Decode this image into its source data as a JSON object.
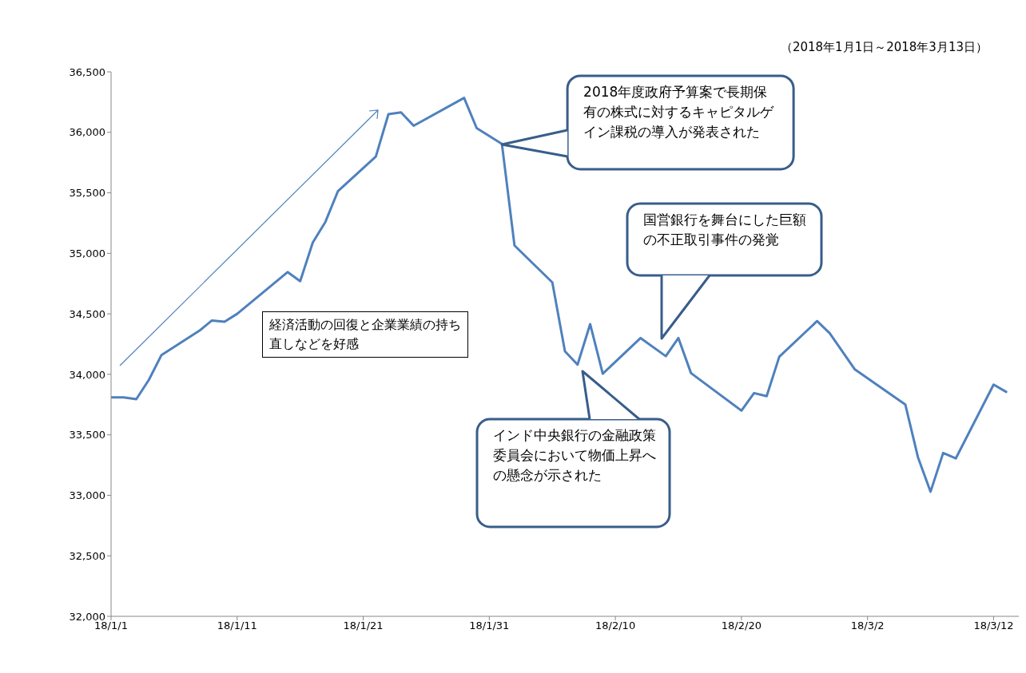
{
  "chart_data": {
    "type": "line",
    "subtitle": "（2018年1月1日～2018年3月13日）",
    "annotations": [
      "経済活動の回復と企業業績の持ち直しなどを好感",
      {
        "text": "2018年度政府予算案で長期保有の株式に対するキャピタルゲイン課税の導入が発表された",
        "x": "2018-02-01",
        "y": 35900
      },
      "国営銀行を舞台にした巨額の不正取引事件の発覚",
      "インド中央銀行の金融政策委員会において物価上昇への懸念が示された"
    ],
    "x": [
      "2018-01-01",
      "2018-01-02",
      "2018-01-03",
      "2018-01-04",
      "2018-01-05",
      "2018-01-08",
      "2018-01-09",
      "2018-01-10",
      "2018-01-11",
      "2018-01-15",
      "2018-01-16",
      "2018-01-17",
      "2018-01-18",
      "2018-01-19",
      "2018-01-22",
      "2018-01-23",
      "2018-01-24",
      "2018-01-25",
      "2018-01-29",
      "2018-01-30",
      "2018-02-01",
      "2018-02-02",
      "2018-02-05",
      "2018-02-06",
      "2018-02-07",
      "2018-02-08",
      "2018-02-09",
      "2018-02-12",
      "2018-02-14",
      "2018-02-15",
      "2018-02-16",
      "2018-02-20",
      "2018-02-21",
      "2018-02-22",
      "2018-02-23",
      "2018-02-26",
      "2018-02-27",
      "2018-03-01",
      "2018-03-05",
      "2018-03-06",
      "2018-03-07",
      "2018-03-08",
      "2018-03-09",
      "2018-03-12",
      "2018-03-13"
    ],
    "series": [
      {
        "color": "#4f81bd",
        "values": [
          33810,
          33810,
          33795,
          33955,
          34160,
          34360,
          34445,
          34435,
          34500,
          34845,
          34770,
          35090,
          35260,
          35515,
          35800,
          36150,
          36165,
          36055,
          36285,
          36035,
          35905,
          35065,
          34760,
          34190,
          34080,
          34415,
          34005,
          34300,
          34150,
          34300,
          34010,
          33700,
          33845,
          33820,
          34145,
          34440,
          34340,
          34040,
          33750,
          33315,
          33030,
          33350,
          33305,
          33915,
          33855
        ]
      }
    ],
    "xlim": [
      "2018-01-01",
      "2018-03-14"
    ],
    "xticks": [
      {
        "value": "2018-01-01",
        "label": "18/1/1"
      },
      {
        "value": "2018-01-11",
        "label": "18/1/11"
      },
      {
        "value": "2018-01-21",
        "label": "18/1/21"
      },
      {
        "value": "2018-01-31",
        "label": "18/1/31"
      },
      {
        "value": "2018-02-10",
        "label": "18/2/10"
      },
      {
        "value": "2018-02-20",
        "label": "18/2/20"
      },
      {
        "value": "2018-03-02",
        "label": "18/3/2"
      },
      {
        "value": "2018-03-12",
        "label": "18/3/12"
      }
    ],
    "ylim": [
      32000,
      36500
    ],
    "yticks": [
      {
        "value": 32000,
        "label": "32,000"
      },
      {
        "value": 32500,
        "label": "32,500"
      },
      {
        "value": 33000,
        "label": "33,000"
      },
      {
        "value": 33500,
        "label": "33,500"
      },
      {
        "value": 34000,
        "label": "34,000"
      },
      {
        "value": 34500,
        "label": "34,500"
      },
      {
        "value": 35000,
        "label": "35,000"
      },
      {
        "value": 35500,
        "label": "35,500"
      },
      {
        "value": 36000,
        "label": "36,000"
      },
      {
        "value": 36500,
        "label": "36,500"
      }
    ]
  }
}
